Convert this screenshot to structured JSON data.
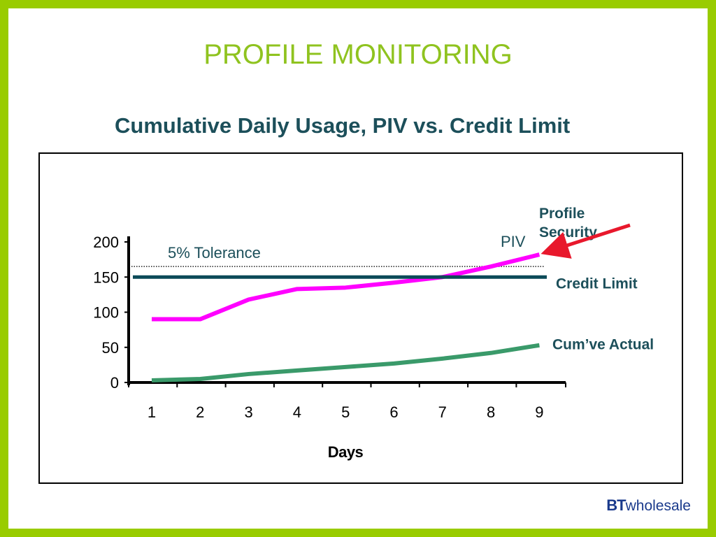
{
  "slide": {
    "title": "PROFILE MONITORING"
  },
  "logo": {
    "brand": "BT",
    "suffix": "wholesale",
    "color": "#1a3a8c"
  },
  "colors": {
    "border": "#99cc00",
    "title": "#8fc31f",
    "chart_title": "#1c4f5a",
    "piv": "#ff00ff",
    "credit_limit": "#0b4a58",
    "actual": "#3a9a6a",
    "arrow": "#e8182c"
  },
  "chart_data": {
    "type": "line",
    "title": "Cumulative Daily Usage, PIV vs. Credit Limit",
    "xlabel": "Days",
    "ylabel": "",
    "x": [
      1,
      2,
      3,
      4,
      5,
      6,
      7,
      8,
      9
    ],
    "ylim": [
      0,
      200
    ],
    "yticks": [
      0,
      50,
      100,
      150,
      200
    ],
    "grid": false,
    "series": [
      {
        "name": "PIV",
        "values": [
          90,
          90,
          118,
          133,
          135,
          142,
          150,
          165,
          182
        ]
      },
      {
        "name": "Credit Limit",
        "values": [
          150,
          150,
          150,
          150,
          150,
          150,
          150,
          150,
          150
        ]
      },
      {
        "name": "Cum’ve Actual",
        "values": [
          3,
          5,
          12,
          17,
          22,
          27,
          34,
          42,
          53
        ]
      }
    ],
    "annotations": {
      "tolerance_label": "5% Tolerance",
      "tolerance_value": 165,
      "profile_security": [
        "Profile",
        "Security"
      ]
    }
  }
}
